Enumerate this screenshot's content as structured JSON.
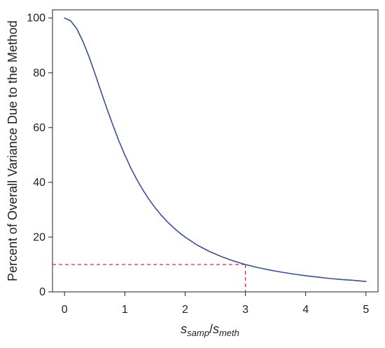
{
  "chart_data": {
    "type": "line",
    "title": "",
    "xlabel": {
      "base1": "s",
      "sub1": "samp",
      "sep": "/",
      "base2": "s",
      "sub2": "meth"
    },
    "ylabel": "Percent of Overall Variance Due to the Method",
    "xlim": [
      -0.2,
      5.2
    ],
    "ylim": [
      0,
      103
    ],
    "xticks": [
      0,
      1,
      2,
      3,
      4,
      5
    ],
    "yticks": [
      0,
      20,
      40,
      60,
      80,
      100
    ],
    "grid": false,
    "series": [
      {
        "color": "#3a4f9a",
        "x": [
          0,
          0.1,
          0.2,
          0.3,
          0.4,
          0.5,
          0.6,
          0.7,
          0.8,
          0.9,
          1.0,
          1.1,
          1.2,
          1.3,
          1.4,
          1.5,
          1.6,
          1.7,
          1.8,
          1.9,
          2.0,
          2.2,
          2.4,
          2.6,
          2.8,
          3.0,
          3.2,
          3.4,
          3.6,
          3.8,
          4.0,
          4.2,
          4.4,
          4.6,
          4.8,
          5.0
        ],
        "y": [
          100,
          99.0,
          96.2,
          91.7,
          86.2,
          80.0,
          73.5,
          67.1,
          61.0,
          55.2,
          50.0,
          45.2,
          41.0,
          37.2,
          33.8,
          30.8,
          28.1,
          25.7,
          23.6,
          21.7,
          20.0,
          17.1,
          14.8,
          12.9,
          11.3,
          10.0,
          8.9,
          8.0,
          7.2,
          6.5,
          5.9,
          5.4,
          4.9,
          4.5,
          4.2,
          3.8
        ]
      }
    ],
    "reference": {
      "x": 3,
      "y": 10,
      "color": "#d4313a",
      "style": "dashed"
    }
  }
}
